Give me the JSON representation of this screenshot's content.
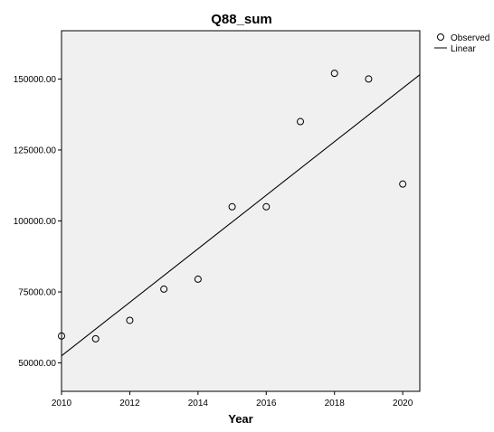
{
  "chart_data": {
    "type": "scatter",
    "title": "Q88_sum",
    "xlabel": "Year",
    "ylabel": "",
    "xlim": [
      2010,
      2020.5
    ],
    "ylim": [
      40000,
      167000
    ],
    "x_ticks": [
      2010,
      2012,
      2014,
      2016,
      2018,
      2020
    ],
    "x_tick_labels": [
      "2010",
      "2012",
      "2014",
      "2016",
      "2018",
      "2020"
    ],
    "y_ticks": [
      50000,
      75000,
      100000,
      125000,
      150000
    ],
    "y_tick_labels": [
      "50000.00",
      "75000.00",
      "100000.00",
      "125000.00",
      "150000.00"
    ],
    "grid": false,
    "legend_position": "top-right outside",
    "legend": [
      "Observed",
      "Linear"
    ],
    "background_color": "#f0f0f0",
    "series": [
      {
        "name": "Observed",
        "marker": "open-circle",
        "x": [
          2010,
          2011,
          2012,
          2013,
          2014,
          2015,
          2016,
          2017,
          2018,
          2019,
          2020
        ],
        "y": [
          59500,
          58500,
          65000,
          76000,
          79500,
          105000,
          105000,
          135000,
          152000,
          150000,
          113000
        ]
      },
      {
        "name": "Linear",
        "line": true,
        "x": [
          2010,
          2020.5
        ],
        "y": [
          52500,
          151500
        ]
      }
    ]
  }
}
